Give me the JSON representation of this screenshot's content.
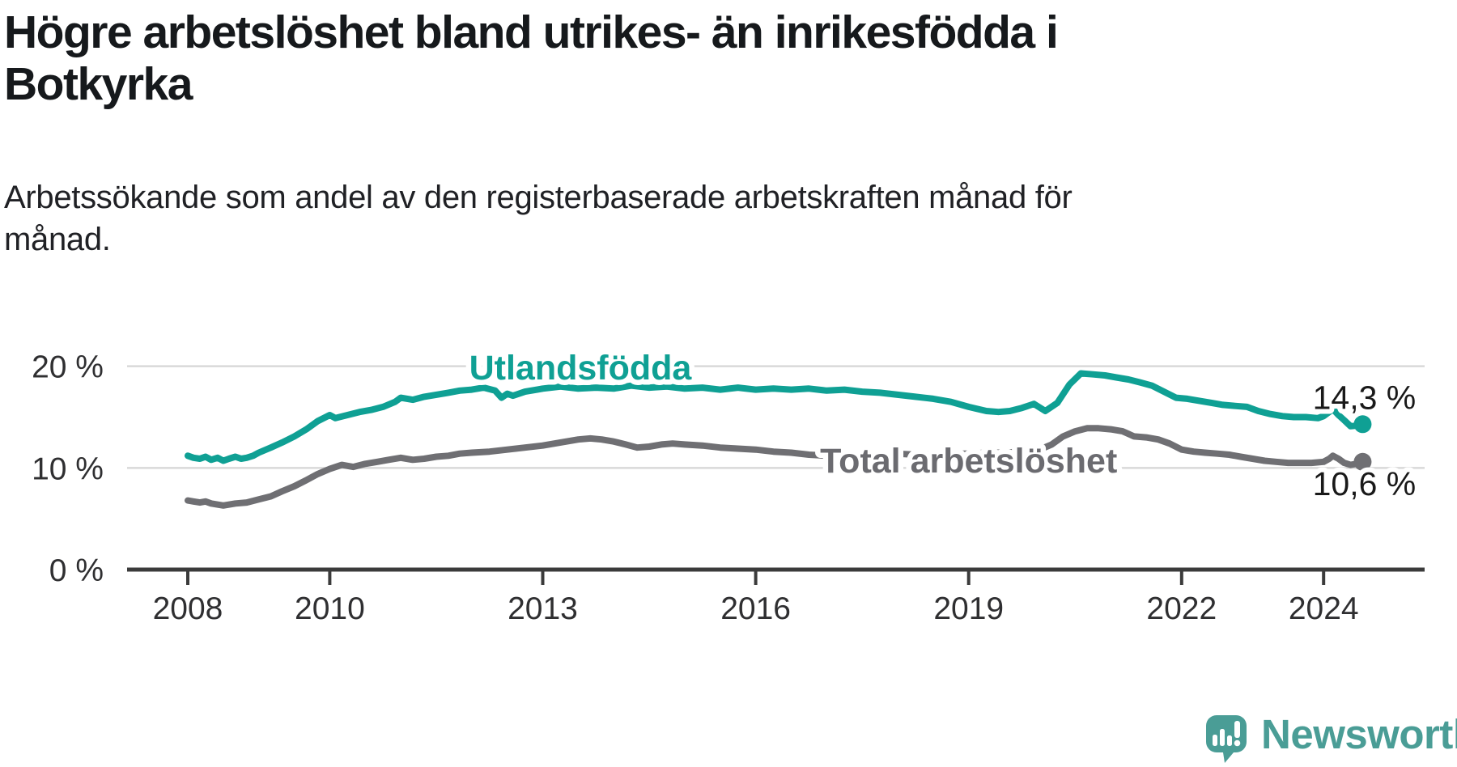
{
  "title": "Högre arbetslöshet bland utrikes- än inrikesfödda i\nBotkyrka",
  "subtitle": "Arbetssökande som andel av den registerbaserade arbetskraften månad för\nmånad.",
  "footer": {
    "brand": "Newsworthy"
  },
  "colors": {
    "title": "#16191c",
    "subtitle": "#202125",
    "axis_text": "#2f2f31",
    "axis_line": "#3b3b3b",
    "grid": "#d9d9d9",
    "value_label": "#191919",
    "series_foreign": "#0fa094",
    "series_total": "#6f6f73",
    "series_total_label": "#6b6b70",
    "logo": "#4a9d96",
    "background": "#ffffff"
  },
  "chart_data": {
    "type": "line",
    "title": "Högre arbetslöshet bland utrikes- än inrikesfödda i Botkyrka",
    "subtitle": "Arbetssökande som andel av den registerbaserade arbetskraften månad för månad.",
    "xlabel": "",
    "ylabel": "",
    "grid": "horizontal",
    "legend_position": "inline-labels",
    "xlim": [
      2007.15,
      2025.45
    ],
    "ylim": [
      0,
      26.3
    ],
    "x_axis": {
      "ticks": [
        2008,
        2010,
        2013,
        2016,
        2019,
        2022,
        2024
      ],
      "tick_labels": [
        "2008",
        "2010",
        "2013",
        "2016",
        "2019",
        "2022",
        "2024"
      ]
    },
    "y_axis": {
      "ticks": [
        0,
        10,
        20
      ],
      "tick_labels": [
        "0 %",
        "10 %",
        "20 %"
      ]
    },
    "series": [
      {
        "name": "Utlandsfödda",
        "color": "#0fa094",
        "label_color": "#0fa094",
        "end_label": "14,3 %",
        "end_value": 14.3,
        "label_pos": {
          "x": 2013.53,
          "y": 19.8
        },
        "points": [
          [
            2008.0,
            11.2
          ],
          [
            2008.08,
            11.0
          ],
          [
            2008.17,
            10.9
          ],
          [
            2008.25,
            11.1
          ],
          [
            2008.33,
            10.8
          ],
          [
            2008.42,
            11.0
          ],
          [
            2008.5,
            10.7
          ],
          [
            2008.58,
            10.9
          ],
          [
            2008.67,
            11.1
          ],
          [
            2008.75,
            10.9
          ],
          [
            2008.83,
            11.0
          ],
          [
            2008.92,
            11.2
          ],
          [
            2009.0,
            11.5
          ],
          [
            2009.17,
            12.0
          ],
          [
            2009.33,
            12.5
          ],
          [
            2009.5,
            13.1
          ],
          [
            2009.67,
            13.8
          ],
          [
            2009.83,
            14.6
          ],
          [
            2010.0,
            15.2
          ],
          [
            2010.08,
            14.9
          ],
          [
            2010.25,
            15.2
          ],
          [
            2010.42,
            15.5
          ],
          [
            2010.58,
            15.7
          ],
          [
            2010.75,
            16.0
          ],
          [
            2010.92,
            16.5
          ],
          [
            2011.0,
            16.9
          ],
          [
            2011.17,
            16.7
          ],
          [
            2011.33,
            17.0
          ],
          [
            2011.5,
            17.2
          ],
          [
            2011.67,
            17.4
          ],
          [
            2011.83,
            17.6
          ],
          [
            2012.0,
            17.7
          ],
          [
            2012.17,
            17.9
          ],
          [
            2012.33,
            17.6
          ],
          [
            2012.42,
            16.9
          ],
          [
            2012.5,
            17.3
          ],
          [
            2012.58,
            17.1
          ],
          [
            2012.75,
            17.5
          ],
          [
            2012.92,
            17.7
          ],
          [
            2013.0,
            17.8
          ],
          [
            2013.25,
            18.0
          ],
          [
            2013.5,
            17.8
          ],
          [
            2013.75,
            17.9
          ],
          [
            2014.0,
            17.8
          ],
          [
            2014.25,
            18.1
          ],
          [
            2014.5,
            17.9
          ],
          [
            2014.75,
            18.0
          ],
          [
            2015.0,
            17.8
          ],
          [
            2015.25,
            17.9
          ],
          [
            2015.5,
            17.7
          ],
          [
            2015.75,
            17.9
          ],
          [
            2016.0,
            17.7
          ],
          [
            2016.25,
            17.8
          ],
          [
            2016.5,
            17.7
          ],
          [
            2016.75,
            17.8
          ],
          [
            2017.0,
            17.6
          ],
          [
            2017.25,
            17.7
          ],
          [
            2017.5,
            17.5
          ],
          [
            2017.75,
            17.4
          ],
          [
            2018.0,
            17.2
          ],
          [
            2018.25,
            17.0
          ],
          [
            2018.5,
            16.8
          ],
          [
            2018.75,
            16.5
          ],
          [
            2019.0,
            16.0
          ],
          [
            2019.25,
            15.6
          ],
          [
            2019.42,
            15.5
          ],
          [
            2019.58,
            15.6
          ],
          [
            2019.75,
            15.9
          ],
          [
            2019.92,
            16.3
          ],
          [
            2020.08,
            15.6
          ],
          [
            2020.25,
            16.4
          ],
          [
            2020.42,
            18.2
          ],
          [
            2020.58,
            19.3
          ],
          [
            2020.75,
            19.2
          ],
          [
            2020.92,
            19.1
          ],
          [
            2021.08,
            18.9
          ],
          [
            2021.25,
            18.7
          ],
          [
            2021.42,
            18.4
          ],
          [
            2021.58,
            18.1
          ],
          [
            2021.75,
            17.5
          ],
          [
            2021.92,
            16.9
          ],
          [
            2022.08,
            16.8
          ],
          [
            2022.25,
            16.6
          ],
          [
            2022.42,
            16.4
          ],
          [
            2022.58,
            16.2
          ],
          [
            2022.75,
            16.1
          ],
          [
            2022.92,
            16.0
          ],
          [
            2023.08,
            15.6
          ],
          [
            2023.25,
            15.3
          ],
          [
            2023.42,
            15.1
          ],
          [
            2023.58,
            15.0
          ],
          [
            2023.75,
            15.0
          ],
          [
            2023.92,
            14.9
          ],
          [
            2024.0,
            15.1
          ],
          [
            2024.08,
            15.5
          ],
          [
            2024.13,
            15.8
          ],
          [
            2024.21,
            15.2
          ],
          [
            2024.29,
            14.7
          ],
          [
            2024.38,
            14.1
          ],
          [
            2024.46,
            14.15
          ],
          [
            2024.55,
            14.3
          ]
        ]
      },
      {
        "name": "Total arbetslöshet",
        "color": "#6f6f73",
        "label_color": "#6b6b70",
        "end_label": "10,6 %",
        "end_value": 10.6,
        "label_pos": {
          "x": 2019.0,
          "y": 10.66
        },
        "points": [
          [
            2008.0,
            6.8
          ],
          [
            2008.08,
            6.7
          ],
          [
            2008.17,
            6.6
          ],
          [
            2008.25,
            6.7
          ],
          [
            2008.33,
            6.5
          ],
          [
            2008.5,
            6.3
          ],
          [
            2008.67,
            6.5
          ],
          [
            2008.83,
            6.6
          ],
          [
            2009.0,
            6.9
          ],
          [
            2009.17,
            7.2
          ],
          [
            2009.33,
            7.7
          ],
          [
            2009.5,
            8.2
          ],
          [
            2009.67,
            8.8
          ],
          [
            2009.83,
            9.4
          ],
          [
            2010.0,
            9.9
          ],
          [
            2010.17,
            10.3
          ],
          [
            2010.33,
            10.1
          ],
          [
            2010.5,
            10.4
          ],
          [
            2010.67,
            10.6
          ],
          [
            2010.83,
            10.8
          ],
          [
            2011.0,
            11.0
          ],
          [
            2011.17,
            10.8
          ],
          [
            2011.33,
            10.9
          ],
          [
            2011.5,
            11.1
          ],
          [
            2011.67,
            11.2
          ],
          [
            2011.83,
            11.4
          ],
          [
            2012.0,
            11.5
          ],
          [
            2012.25,
            11.6
          ],
          [
            2012.5,
            11.8
          ],
          [
            2012.75,
            12.0
          ],
          [
            2013.0,
            12.2
          ],
          [
            2013.25,
            12.5
          ],
          [
            2013.5,
            12.8
          ],
          [
            2013.67,
            12.9
          ],
          [
            2013.83,
            12.8
          ],
          [
            2014.0,
            12.6
          ],
          [
            2014.17,
            12.3
          ],
          [
            2014.33,
            12.0
          ],
          [
            2014.5,
            12.1
          ],
          [
            2014.67,
            12.3
          ],
          [
            2014.83,
            12.4
          ],
          [
            2015.0,
            12.3
          ],
          [
            2015.25,
            12.2
          ],
          [
            2015.5,
            12.0
          ],
          [
            2015.75,
            11.9
          ],
          [
            2016.0,
            11.8
          ],
          [
            2016.25,
            11.6
          ],
          [
            2016.5,
            11.5
          ],
          [
            2016.75,
            11.3
          ],
          [
            2017.0,
            11.2
          ],
          [
            2017.25,
            11.3
          ],
          [
            2017.5,
            11.2
          ],
          [
            2017.75,
            11.3
          ],
          [
            2018.0,
            11.4
          ],
          [
            2018.25,
            11.3
          ],
          [
            2018.5,
            11.4
          ],
          [
            2018.75,
            11.4
          ],
          [
            2019.0,
            11.4
          ],
          [
            2019.25,
            11.5
          ],
          [
            2019.5,
            11.5
          ],
          [
            2019.75,
            11.6
          ],
          [
            2020.0,
            11.8
          ],
          [
            2020.17,
            12.3
          ],
          [
            2020.33,
            13.1
          ],
          [
            2020.5,
            13.6
          ],
          [
            2020.67,
            13.9
          ],
          [
            2020.83,
            13.9
          ],
          [
            2021.0,
            13.8
          ],
          [
            2021.17,
            13.6
          ],
          [
            2021.33,
            13.1
          ],
          [
            2021.5,
            13.0
          ],
          [
            2021.67,
            12.8
          ],
          [
            2021.83,
            12.4
          ],
          [
            2022.0,
            11.8
          ],
          [
            2022.17,
            11.6
          ],
          [
            2022.33,
            11.5
          ],
          [
            2022.5,
            11.4
          ],
          [
            2022.67,
            11.3
          ],
          [
            2022.83,
            11.1
          ],
          [
            2023.0,
            10.9
          ],
          [
            2023.17,
            10.7
          ],
          [
            2023.33,
            10.6
          ],
          [
            2023.5,
            10.5
          ],
          [
            2023.67,
            10.5
          ],
          [
            2023.83,
            10.5
          ],
          [
            2024.0,
            10.6
          ],
          [
            2024.08,
            10.9
          ],
          [
            2024.13,
            11.2
          ],
          [
            2024.21,
            10.9
          ],
          [
            2024.29,
            10.5
          ],
          [
            2024.38,
            10.3
          ],
          [
            2024.46,
            10.4
          ],
          [
            2024.55,
            10.6
          ]
        ]
      }
    ]
  }
}
